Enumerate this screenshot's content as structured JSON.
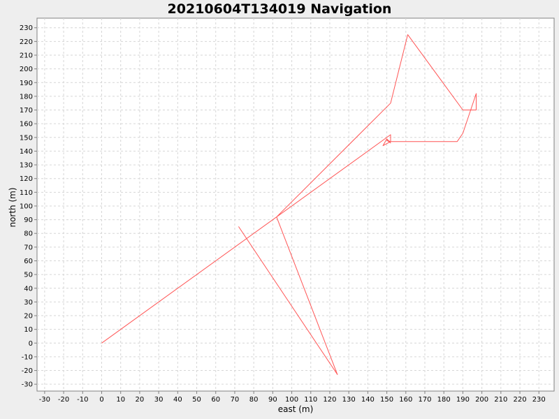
{
  "chart_data": {
    "type": "line",
    "title": "20210604T134019 Navigation",
    "xlabel": "east (m)",
    "ylabel": "north (m)",
    "xlim": [
      -34,
      238
    ],
    "ylim": [
      -35,
      237
    ],
    "xticks": [
      -30,
      -20,
      -10,
      0,
      10,
      20,
      30,
      40,
      50,
      60,
      70,
      80,
      90,
      100,
      110,
      120,
      130,
      140,
      150,
      160,
      170,
      180,
      190,
      200,
      210,
      220,
      230
    ],
    "yticks": [
      -30,
      -20,
      -10,
      0,
      10,
      20,
      30,
      40,
      50,
      60,
      70,
      80,
      90,
      100,
      110,
      120,
      130,
      140,
      150,
      160,
      170,
      180,
      190,
      200,
      210,
      220,
      230
    ],
    "grid": true,
    "legend": "none",
    "series_color": "#ff5555",
    "series": [
      {
        "x": [
          0,
          152,
          152,
          148,
          150,
          152,
          150,
          152,
          187,
          190,
          197,
          197,
          190,
          161,
          152,
          92,
          124,
          72
        ],
        "y": [
          0,
          152,
          147,
          144,
          149,
          146,
          148,
          147,
          147,
          153,
          182,
          170,
          170,
          225,
          175,
          92,
          -23,
          85
        ]
      }
    ]
  }
}
